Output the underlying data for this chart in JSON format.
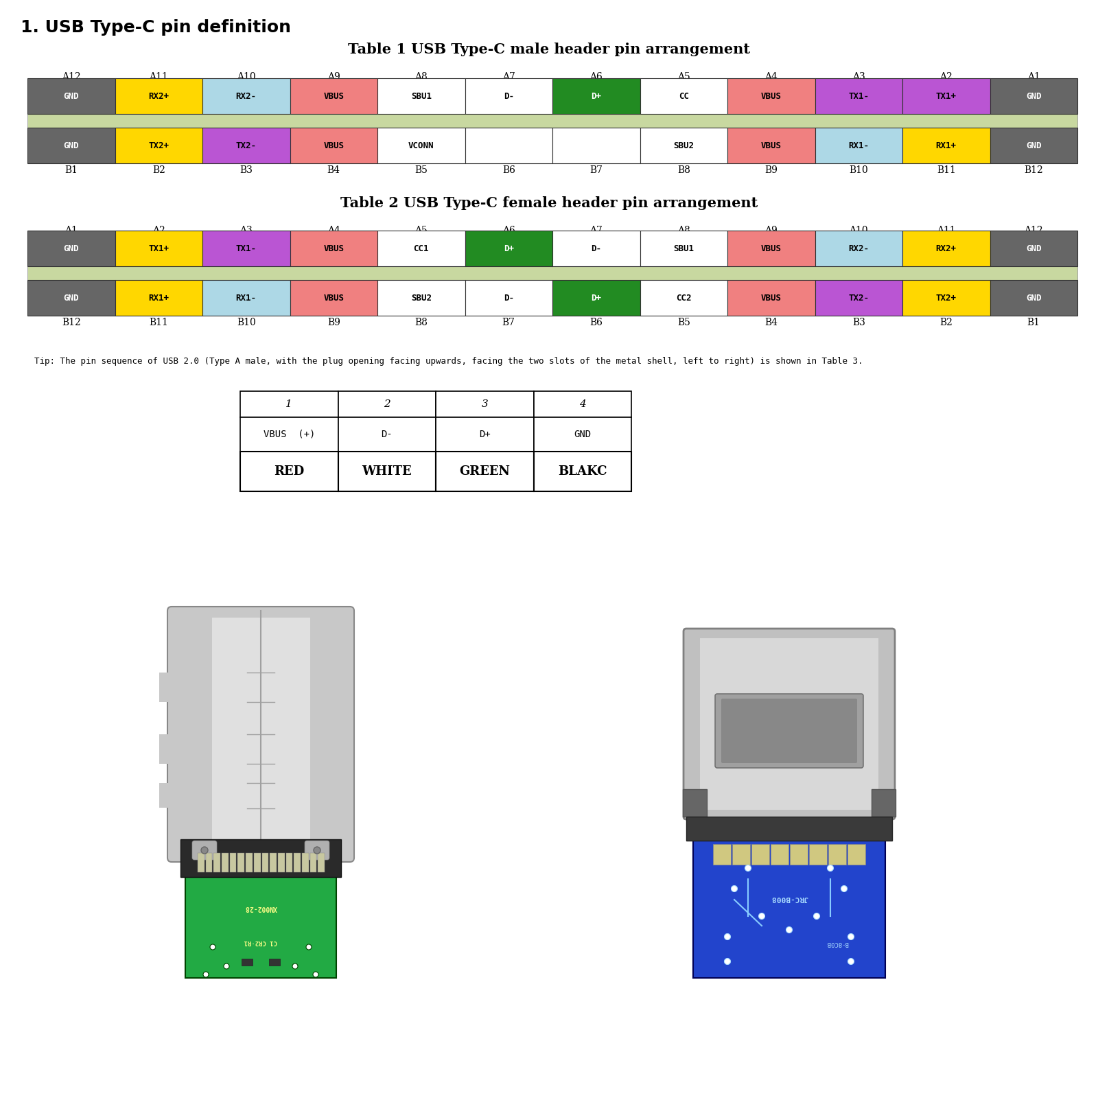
{
  "title_main": "1. USB Type-C pin definition",
  "table1_title": "Table 1 USB Type-C male header pin arrangement",
  "table2_title": "Table 2 USB Type-C female header pin arrangement",
  "tip_text": "Tip: The pin sequence of USB 2.0 (Type A male, with the plug opening facing upwards, facing the two slots of the metal shell, left to right) is shown in Table 3.",
  "male_top_labels": [
    "A12",
    "A11",
    "A10",
    "A9",
    "A8",
    "A7",
    "A6",
    "A5",
    "A4",
    "A3",
    "A2",
    "A1"
  ],
  "male_top_pins": [
    "GND",
    "RX2+",
    "RX2-",
    "VBUS",
    "SBU1",
    "D-",
    "D+",
    "CC",
    "VBUS",
    "TX1-",
    "TX1+",
    "GND"
  ],
  "male_top_colors": [
    "#666666",
    "#FFD700",
    "#ADD8E6",
    "#F08080",
    "#FFFFFF",
    "#FFFFFF",
    "#228B22",
    "#FFFFFF",
    "#F08080",
    "#BA55D3",
    "#BA55D3",
    "#666666"
  ],
  "male_top_text_colors": [
    "#FFFFFF",
    "#000000",
    "#000000",
    "#000000",
    "#000000",
    "#000000",
    "#FFFFFF",
    "#000000",
    "#000000",
    "#000000",
    "#000000",
    "#FFFFFF"
  ],
  "male_bot_labels": [
    "B1",
    "B2",
    "B3",
    "B4",
    "B5",
    "B6",
    "B7",
    "B8",
    "B9",
    "B10",
    "B11",
    "B12"
  ],
  "male_bot_pins": [
    "GND",
    "TX2+",
    "TX2-",
    "VBUS",
    "VCONN",
    "",
    "",
    "SBU2",
    "VBUS",
    "RX1-",
    "RX1+",
    "GND"
  ],
  "male_bot_colors": [
    "#666666",
    "#FFD700",
    "#BA55D3",
    "#F08080",
    "#FFFFFF",
    "#FFFFFF",
    "#FFFFFF",
    "#FFFFFF",
    "#F08080",
    "#ADD8E6",
    "#FFD700",
    "#666666"
  ],
  "male_bot_text_colors": [
    "#FFFFFF",
    "#000000",
    "#000000",
    "#000000",
    "#000000",
    "#000000",
    "#000000",
    "#000000",
    "#000000",
    "#000000",
    "#000000",
    "#FFFFFF"
  ],
  "female_top_labels": [
    "A1",
    "A2",
    "A3",
    "A4",
    "A5",
    "A6",
    "A7",
    "A8",
    "A9",
    "A10",
    "A11",
    "A12"
  ],
  "female_top_pins": [
    "GND",
    "TX1+",
    "TX1-",
    "VBUS",
    "CC1",
    "D+",
    "D-",
    "SBU1",
    "VBUS",
    "RX2-",
    "RX2+",
    "GND"
  ],
  "female_top_colors": [
    "#666666",
    "#FFD700",
    "#BA55D3",
    "#F08080",
    "#FFFFFF",
    "#228B22",
    "#FFFFFF",
    "#FFFFFF",
    "#F08080",
    "#ADD8E6",
    "#FFD700",
    "#666666"
  ],
  "female_top_text_colors": [
    "#FFFFFF",
    "#000000",
    "#000000",
    "#000000",
    "#000000",
    "#FFFFFF",
    "#000000",
    "#000000",
    "#000000",
    "#000000",
    "#000000",
    "#FFFFFF"
  ],
  "female_bot_labels": [
    "B12",
    "B11",
    "B10",
    "B9",
    "B8",
    "B7",
    "B6",
    "B5",
    "B4",
    "B3",
    "B2",
    "B1"
  ],
  "female_bot_pins": [
    "GND",
    "RX1+",
    "RX1-",
    "VBUS",
    "SBU2",
    "D-",
    "D+",
    "CC2",
    "VBUS",
    "TX2-",
    "TX2+",
    "GND"
  ],
  "female_bot_colors": [
    "#666666",
    "#FFD700",
    "#ADD8E6",
    "#F08080",
    "#FFFFFF",
    "#FFFFFF",
    "#228B22",
    "#FFFFFF",
    "#F08080",
    "#BA55D3",
    "#FFD700",
    "#666666"
  ],
  "female_bot_text_colors": [
    "#FFFFFF",
    "#000000",
    "#000000",
    "#000000",
    "#000000",
    "#000000",
    "#FFFFFF",
    "#000000",
    "#000000",
    "#000000",
    "#000000",
    "#FFFFFF"
  ],
  "usb2_cols": [
    "1",
    "2",
    "3",
    "4"
  ],
  "usb2_signals": [
    "VBUS  (+)",
    "D-",
    "D+",
    "GND"
  ],
  "usb2_colors_text": [
    "RED",
    "WHITE",
    "GREEN",
    "BLAKC"
  ],
  "connector_gap_color": "#C8D8A0",
  "background_color": "#FFFFFF"
}
